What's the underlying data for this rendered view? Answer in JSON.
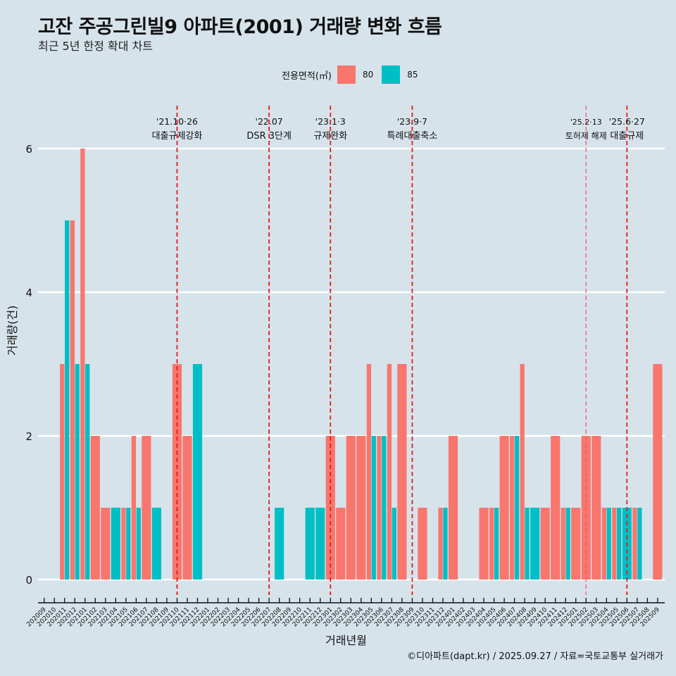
{
  "header": {
    "title": "고잔 주공그린빌9 아파트(2001) 거래량 변화 흐름",
    "subtitle": "최근 5년 한정 확대 차트"
  },
  "legend": {
    "title": "전용면적(㎡)",
    "items": [
      {
        "label": "80",
        "color": "#f8766d"
      },
      {
        "label": "85",
        "color": "#00bfc4"
      }
    ]
  },
  "footer": "©디아파트(dapt.kr) / 2025.09.27 / 자료=국토교통부 실거래가",
  "chart_data": {
    "type": "bar",
    "title": "고잔 주공그린빌9 아파트(2001) 거래량 변화 흐름",
    "subtitle": "최근 5년 한정 확대 차트",
    "xlabel": "거래년월",
    "ylabel": "거래량(건)",
    "ylim": [
      0,
      6
    ],
    "yticks": [
      0,
      2,
      4,
      6
    ],
    "grid": true,
    "legend_position": "top",
    "bar_mode": "dodge",
    "categories": [
      "202009",
      "202010",
      "202011",
      "202012",
      "202101",
      "202102",
      "202103",
      "202104",
      "202105",
      "202106",
      "202107",
      "202108",
      "202109",
      "202110",
      "202111",
      "202112",
      "202201",
      "202202",
      "202203",
      "202204",
      "202205",
      "202206",
      "202207",
      "202208",
      "202209",
      "202210",
      "202211",
      "202212",
      "202301",
      "202302",
      "202303",
      "202304",
      "202305",
      "202306",
      "202307",
      "202308",
      "202309",
      "202310",
      "202311",
      "202312",
      "202401",
      "202402",
      "202403",
      "202404",
      "202405",
      "202406",
      "202407",
      "202408",
      "202409",
      "202410",
      "202411",
      "202412",
      "202501",
      "202502",
      "202503",
      "202504",
      "202505",
      "202506",
      "202507",
      "202508",
      "202509"
    ],
    "series": [
      {
        "name": "80",
        "color": "#f8766d",
        "values": [
          0,
          0,
          3,
          5,
          6,
          2,
          1,
          0,
          1,
          2,
          2,
          0,
          0,
          3,
          2,
          0,
          0,
          0,
          0,
          0,
          0,
          0,
          0,
          0,
          0,
          0,
          0,
          0,
          2,
          1,
          2,
          2,
          3,
          2,
          3,
          3,
          0,
          1,
          0,
          1,
          2,
          0,
          0,
          1,
          1,
          2,
          2,
          3,
          0,
          1,
          2,
          1,
          1,
          2,
          2,
          1,
          1,
          0,
          1,
          0,
          3
        ]
      },
      {
        "name": "85",
        "color": "#00bfc4",
        "values": [
          0,
          0,
          5,
          3,
          3,
          0,
          0,
          1,
          1,
          1,
          0,
          1,
          0,
          0,
          0,
          3,
          0,
          0,
          0,
          0,
          0,
          0,
          0,
          1,
          0,
          0,
          1,
          1,
          0,
          0,
          0,
          0,
          2,
          2,
          1,
          0,
          0,
          0,
          0,
          1,
          0,
          0,
          0,
          0,
          1,
          0,
          2,
          1,
          1,
          0,
          0,
          1,
          0,
          0,
          0,
          1,
          1,
          1,
          1,
          0,
          0
        ]
      }
    ],
    "annotations": [
      {
        "category": "202110",
        "date": "'21.10·26",
        "label": "대출규제강화",
        "style": "major"
      },
      {
        "category": "202207",
        "date": "'22.07",
        "label": "DSR 3단계",
        "style": "major"
      },
      {
        "category": "202301",
        "date": "'23.1·3",
        "label": "규제완화",
        "style": "major"
      },
      {
        "category": "202309",
        "date": "'23.9·7",
        "label": "특례대출축소",
        "style": "major"
      },
      {
        "category": "202502",
        "date": "'25.2·13",
        "label": "토허제 해제",
        "style": "minor"
      },
      {
        "category": "202506",
        "date": "'25.6·27",
        "label": "대출규제",
        "style": "major"
      }
    ]
  }
}
